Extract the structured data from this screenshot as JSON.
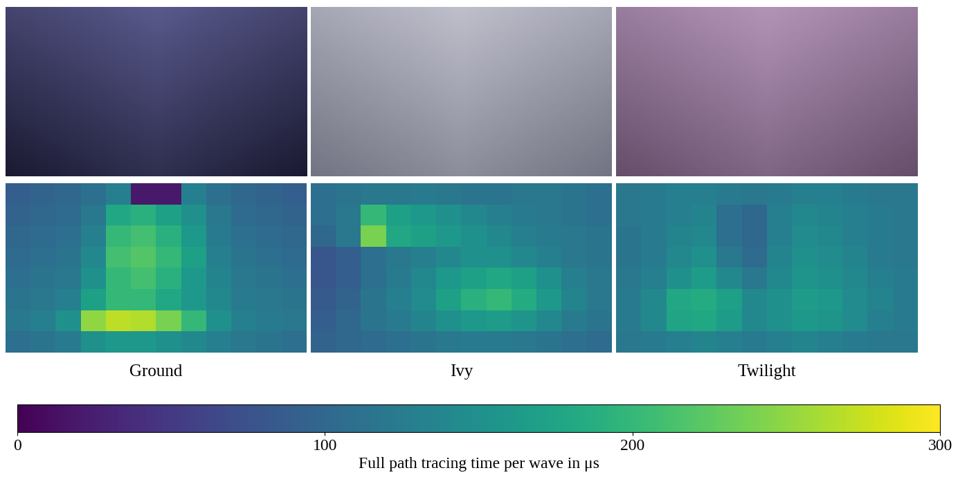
{
  "chart_data": {
    "type": "heatmap",
    "tick_labels": false,
    "panels": [
      {
        "label": "Ground",
        "cells": [
          [
            90,
            95,
            100,
            110,
            130,
            20,
            20,
            130,
            110,
            100,
            95,
            90
          ],
          [
            95,
            100,
            105,
            120,
            180,
            190,
            170,
            150,
            120,
            105,
            100,
            95
          ],
          [
            100,
            105,
            110,
            130,
            200,
            210,
            190,
            160,
            125,
            110,
            105,
            100
          ],
          [
            105,
            110,
            115,
            140,
            210,
            220,
            200,
            170,
            130,
            115,
            110,
            105
          ],
          [
            110,
            115,
            120,
            150,
            200,
            210,
            190,
            160,
            135,
            120,
            115,
            110
          ],
          [
            115,
            120,
            130,
            170,
            200,
            200,
            180,
            160,
            140,
            125,
            120,
            115
          ],
          [
            120,
            130,
            150,
            250,
            270,
            265,
            240,
            200,
            150,
            130,
            125,
            120
          ],
          [
            110,
            115,
            125,
            150,
            160,
            160,
            150,
            140,
            130,
            120,
            115,
            110
          ]
        ]
      },
      {
        "label": "Ivy",
        "cells": [
          [
            110,
            115,
            120,
            120,
            125,
            120,
            115,
            115,
            120,
            120,
            115,
            110
          ],
          [
            110,
            120,
            200,
            170,
            160,
            150,
            140,
            130,
            125,
            120,
            115,
            110
          ],
          [
            100,
            120,
            240,
            180,
            170,
            160,
            150,
            140,
            130,
            125,
            120,
            115
          ],
          [
            80,
            90,
            110,
            120,
            130,
            140,
            150,
            150,
            140,
            130,
            120,
            115
          ],
          [
            80,
            90,
            110,
            125,
            140,
            160,
            170,
            180,
            170,
            150,
            130,
            120
          ],
          [
            85,
            95,
            115,
            130,
            145,
            170,
            190,
            200,
            185,
            160,
            135,
            120
          ],
          [
            90,
            100,
            115,
            125,
            135,
            150,
            160,
            165,
            155,
            140,
            125,
            115
          ],
          [
            95,
            100,
            105,
            110,
            115,
            120,
            125,
            125,
            120,
            115,
            110,
            105
          ]
        ]
      },
      {
        "label": "Twilight",
        "cells": [
          [
            120,
            125,
            130,
            130,
            125,
            120,
            125,
            130,
            130,
            125,
            120,
            120
          ],
          [
            120,
            125,
            130,
            135,
            110,
            100,
            130,
            140,
            135,
            130,
            125,
            120
          ],
          [
            115,
            125,
            135,
            140,
            110,
            100,
            130,
            145,
            140,
            130,
            125,
            120
          ],
          [
            115,
            125,
            140,
            150,
            120,
            105,
            135,
            150,
            145,
            135,
            125,
            120
          ],
          [
            120,
            130,
            150,
            165,
            140,
            120,
            140,
            155,
            150,
            140,
            130,
            125
          ],
          [
            125,
            140,
            180,
            185,
            170,
            140,
            150,
            165,
            160,
            145,
            135,
            125
          ],
          [
            125,
            140,
            175,
            180,
            165,
            140,
            150,
            160,
            155,
            145,
            130,
            125
          ],
          [
            120,
            125,
            130,
            135,
            130,
            125,
            130,
            135,
            130,
            125,
            120,
            120
          ]
        ]
      }
    ],
    "colorbar": {
      "label": "Full path tracing time per wave in μs",
      "range": [
        0,
        300
      ],
      "ticks": [
        0,
        100,
        200,
        300
      ]
    }
  }
}
